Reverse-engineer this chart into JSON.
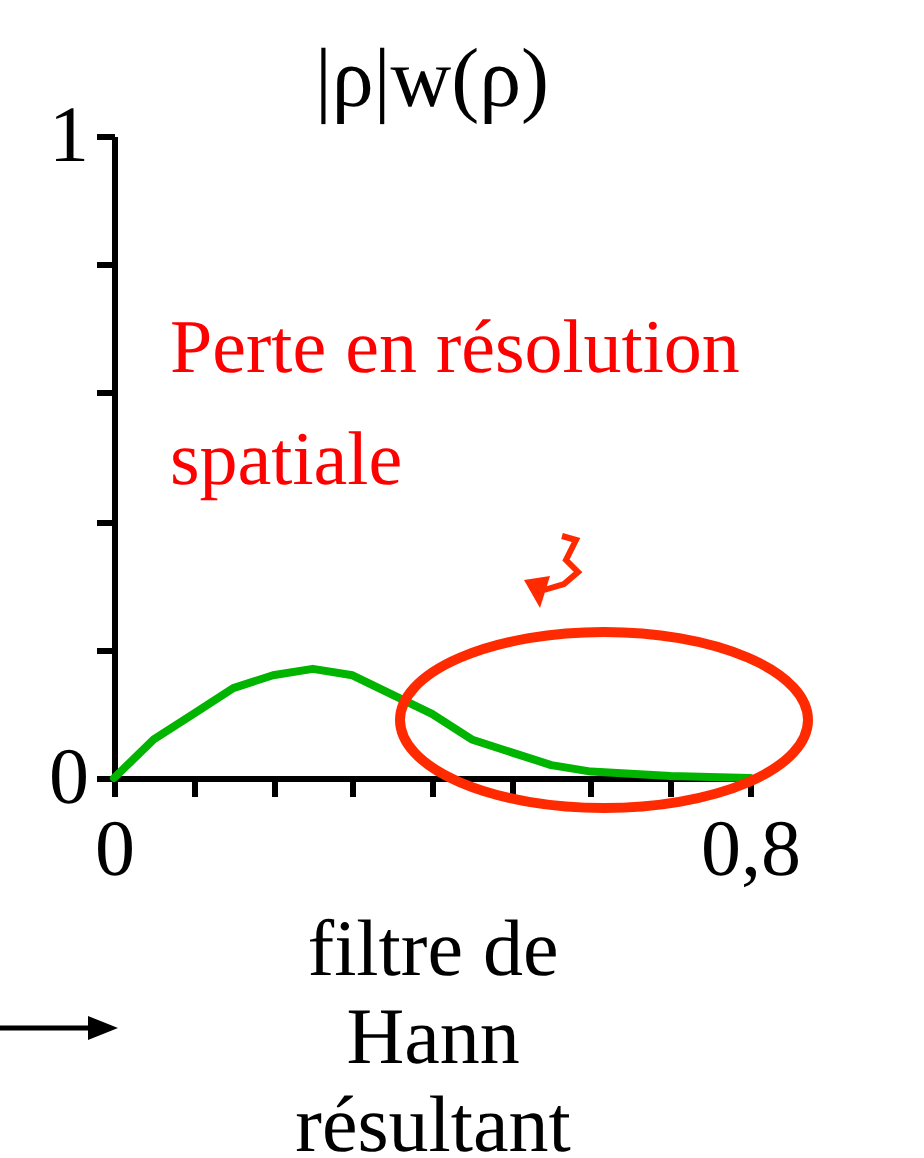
{
  "chart_data": {
    "type": "line",
    "title": "|ρ|w(ρ)",
    "xlabel": "filtre de Hann résultant",
    "x": [
      0,
      0.05,
      0.1,
      0.15,
      0.2,
      0.25,
      0.3,
      0.35,
      0.4,
      0.45,
      0.5,
      0.55,
      0.6,
      0.7,
      0.8
    ],
    "series": [
      {
        "color": "#00b400",
        "values": [
          0,
          0.06,
          0.1,
          0.14,
          0.16,
          0.17,
          0.16,
          0.13,
          0.1,
          0.06,
          0.04,
          0.02,
          0.01,
          0.003,
          0
        ]
      }
    ],
    "xlim": [
      0,
      0.8
    ],
    "ylim": [
      0,
      1
    ],
    "xticks": [
      0,
      {
        "value": 0.1,
        "label": null
      },
      {
        "value": 0.2,
        "label": null
      },
      {
        "value": 0.3,
        "label": null
      },
      {
        "value": 0.4,
        "label": null
      },
      {
        "value": 0.5,
        "label": null
      },
      {
        "value": 0.6,
        "label": null
      },
      {
        "value": 0.7,
        "label": null
      },
      {
        "value": 0.8,
        "label": "0,8"
      }
    ],
    "yticks": [
      0,
      {
        "value": 0.2,
        "label": null
      },
      {
        "value": 0.4,
        "label": null
      },
      {
        "value": 0.6,
        "label": null
      },
      {
        "value": 0.8,
        "label": null
      },
      1
    ],
    "annotations": [
      "Perte en résolution spatiale"
    ],
    "grid": false,
    "legend": false,
    "marker": "none",
    "line_style": "solid"
  }
}
